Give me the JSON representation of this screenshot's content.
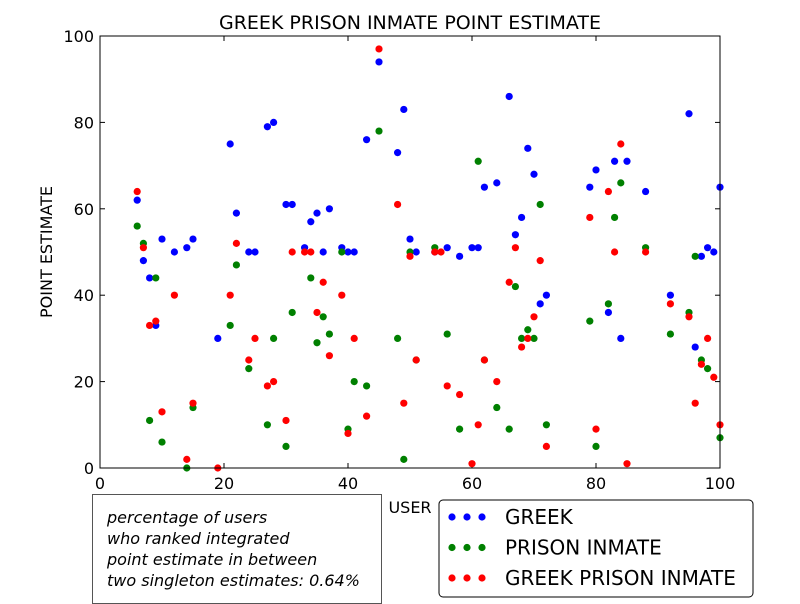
{
  "chart_data": {
    "type": "scatter",
    "title": "GREEK PRISON INMATE POINT ESTIMATE",
    "xlabel": "USER",
    "ylabel": "POINT ESTIMATE",
    "xlim": [
      0,
      100
    ],
    "ylim": [
      0,
      100
    ],
    "xticks": [
      0,
      20,
      40,
      60,
      80,
      100
    ],
    "yticks": [
      0,
      20,
      40,
      60,
      80,
      100
    ],
    "grid": false,
    "legend_position": "bottom-right",
    "series": [
      {
        "name": "GREEK",
        "color": "#0000ff",
        "points": [
          [
            6,
            62
          ],
          [
            7,
            48
          ],
          [
            8,
            44
          ],
          [
            9,
            33
          ],
          [
            10,
            53
          ],
          [
            12,
            50
          ],
          [
            14,
            51
          ],
          [
            15,
            53
          ],
          [
            19,
            30
          ],
          [
            21,
            75
          ],
          [
            22,
            59
          ],
          [
            24,
            50
          ],
          [
            25,
            50
          ],
          [
            27,
            79
          ],
          [
            28,
            80
          ],
          [
            30,
            61
          ],
          [
            31,
            61
          ],
          [
            33,
            51
          ],
          [
            34,
            57
          ],
          [
            35,
            59
          ],
          [
            36,
            50
          ],
          [
            37,
            60
          ],
          [
            39,
            51
          ],
          [
            40,
            50
          ],
          [
            41,
            50
          ],
          [
            43,
            76
          ],
          [
            45,
            94
          ],
          [
            48,
            73
          ],
          [
            49,
            83
          ],
          [
            50,
            53
          ],
          [
            51,
            50
          ],
          [
            54,
            50
          ],
          [
            56,
            51
          ],
          [
            58,
            49
          ],
          [
            60,
            51
          ],
          [
            61,
            51
          ],
          [
            62,
            65
          ],
          [
            64,
            66
          ],
          [
            66,
            86
          ],
          [
            67,
            54
          ],
          [
            68,
            58
          ],
          [
            69,
            74
          ],
          [
            70,
            68
          ],
          [
            71,
            38
          ],
          [
            72,
            40
          ],
          [
            79,
            65
          ],
          [
            80,
            69
          ],
          [
            82,
            36
          ],
          [
            83,
            71
          ],
          [
            84,
            30
          ],
          [
            85,
            71
          ],
          [
            88,
            64
          ],
          [
            92,
            40
          ],
          [
            95,
            82
          ],
          [
            96,
            28
          ],
          [
            97,
            49
          ],
          [
            98,
            51
          ],
          [
            99,
            50
          ],
          [
            100,
            65
          ]
        ]
      },
      {
        "name": "PRISON INMATE",
        "color": "#008000",
        "points": [
          [
            6,
            56
          ],
          [
            7,
            52
          ],
          [
            8,
            11
          ],
          [
            9,
            44
          ],
          [
            10,
            6
          ],
          [
            14,
            0
          ],
          [
            15,
            14
          ],
          [
            21,
            33
          ],
          [
            22,
            47
          ],
          [
            24,
            23
          ],
          [
            27,
            10
          ],
          [
            28,
            30
          ],
          [
            30,
            5
          ],
          [
            31,
            36
          ],
          [
            34,
            44
          ],
          [
            35,
            29
          ],
          [
            36,
            35
          ],
          [
            37,
            31
          ],
          [
            39,
            50
          ],
          [
            40,
            9
          ],
          [
            41,
            20
          ],
          [
            43,
            19
          ],
          [
            45,
            78
          ],
          [
            48,
            30
          ],
          [
            49,
            2
          ],
          [
            50,
            50
          ],
          [
            51,
            25
          ],
          [
            54,
            51
          ],
          [
            56,
            31
          ],
          [
            58,
            9
          ],
          [
            61,
            71
          ],
          [
            62,
            25
          ],
          [
            64,
            14
          ],
          [
            66,
            9
          ],
          [
            67,
            42
          ],
          [
            68,
            30
          ],
          [
            69,
            32
          ],
          [
            70,
            30
          ],
          [
            71,
            61
          ],
          [
            72,
            10
          ],
          [
            79,
            34
          ],
          [
            80,
            5
          ],
          [
            82,
            38
          ],
          [
            83,
            58
          ],
          [
            84,
            66
          ],
          [
            88,
            51
          ],
          [
            92,
            31
          ],
          [
            95,
            36
          ],
          [
            96,
            49
          ],
          [
            97,
            25
          ],
          [
            98,
            23
          ],
          [
            100,
            7
          ]
        ]
      },
      {
        "name": "GREEK PRISON INMATE",
        "color": "#ff0000",
        "points": [
          [
            6,
            64
          ],
          [
            7,
            51
          ],
          [
            8,
            33
          ],
          [
            9,
            34
          ],
          [
            10,
            13
          ],
          [
            12,
            40
          ],
          [
            14,
            2
          ],
          [
            15,
            15
          ],
          [
            19,
            0
          ],
          [
            21,
            40
          ],
          [
            22,
            52
          ],
          [
            24,
            25
          ],
          [
            25,
            30
          ],
          [
            27,
            19
          ],
          [
            28,
            20
          ],
          [
            30,
            11
          ],
          [
            31,
            50
          ],
          [
            33,
            50
          ],
          [
            34,
            50
          ],
          [
            35,
            36
          ],
          [
            36,
            43
          ],
          [
            37,
            26
          ],
          [
            39,
            40
          ],
          [
            40,
            8
          ],
          [
            41,
            30
          ],
          [
            43,
            12
          ],
          [
            45,
            97
          ],
          [
            48,
            61
          ],
          [
            49,
            15
          ],
          [
            50,
            49
          ],
          [
            51,
            25
          ],
          [
            54,
            50
          ],
          [
            55,
            50
          ],
          [
            56,
            19
          ],
          [
            58,
            17
          ],
          [
            60,
            1
          ],
          [
            61,
            10
          ],
          [
            62,
            25
          ],
          [
            64,
            20
          ],
          [
            66,
            43
          ],
          [
            67,
            51
          ],
          [
            68,
            28
          ],
          [
            69,
            30
          ],
          [
            70,
            35
          ],
          [
            71,
            48
          ],
          [
            72,
            5
          ],
          [
            79,
            58
          ],
          [
            80,
            9
          ],
          [
            82,
            64
          ],
          [
            83,
            50
          ],
          [
            84,
            75
          ],
          [
            85,
            1
          ],
          [
            88,
            50
          ],
          [
            92,
            38
          ],
          [
            95,
            35
          ],
          [
            96,
            15
          ],
          [
            97,
            24
          ],
          [
            98,
            30
          ],
          [
            99,
            21
          ],
          [
            100,
            10
          ]
        ]
      }
    ]
  },
  "note": {
    "lines": [
      "percentage of users",
      "who ranked integrated",
      "point estimate in between",
      "two singleton estimates: 0.64%"
    ]
  }
}
